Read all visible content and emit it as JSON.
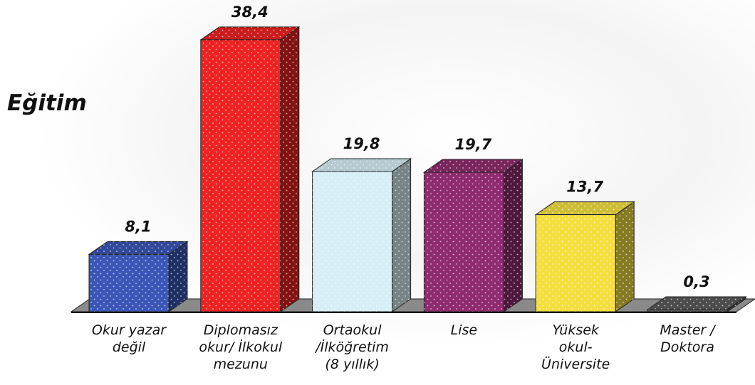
{
  "chart_data": {
    "type": "bar3d",
    "title": "Eğitim",
    "categories": [
      "Okur yazar\ndeğil",
      "Diplomasız\nokur/ İlkokul\nmezunu",
      "Ortaokul\n/İlköğretim\n(8 yıllık)",
      "Lise",
      "Yüksek\nokul-\nÜniversite",
      "Master /\nDoktora"
    ],
    "values": [
      8.1,
      38.4,
      19.8,
      19.7,
      13.7,
      0.3
    ],
    "value_labels": [
      "8,1",
      "38,4",
      "19,8",
      "19,7",
      "13,7",
      "0,3"
    ],
    "colors": [
      "#3b56b6",
      "#ee2222",
      "#d6eef6",
      "#8f2b6f",
      "#f4df3e",
      "#5a5a5a"
    ]
  }
}
